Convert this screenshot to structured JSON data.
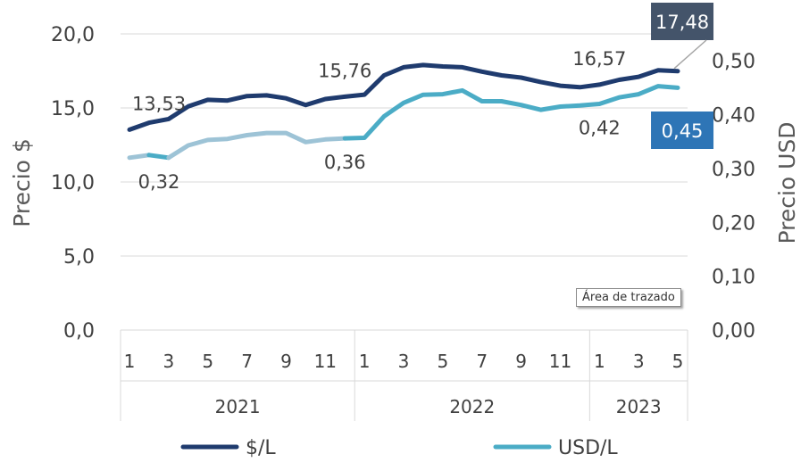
{
  "chart_data": {
    "type": "line",
    "ylabel": "Precio $",
    "y2label": "Precio USD",
    "ylim": [
      0,
      20
    ],
    "y2lim": [
      0,
      0.55
    ],
    "yticks": [
      "0,0",
      "5,0",
      "10,0",
      "15,0",
      "20,0"
    ],
    "y2ticks": [
      "0,00",
      "0,10",
      "0,20",
      "0,30",
      "0,40",
      "0,50"
    ],
    "grid": true,
    "legend": "bottom",
    "months": [
      1,
      2,
      3,
      4,
      5,
      6,
      7,
      8,
      9,
      10,
      11,
      12,
      1,
      2,
      3,
      4,
      5,
      6,
      7,
      8,
      9,
      10,
      11,
      12,
      1,
      2,
      3,
      4,
      5
    ],
    "month_tick_labels": [
      "1",
      "3",
      "5",
      "7",
      "9",
      "11",
      "1",
      "3",
      "5",
      "7",
      "9",
      "11",
      "1",
      "3",
      "5"
    ],
    "years": [
      "2021",
      "2022",
      "2023"
    ],
    "series": [
      {
        "name": "$/L",
        "axis": "left",
        "color": "#1f3b6e",
        "values": [
          13.53,
          14.0,
          14.25,
          15.1,
          15.55,
          15.5,
          15.8,
          15.85,
          15.65,
          15.2,
          15.6,
          15.76,
          15.9,
          17.2,
          17.75,
          17.9,
          17.8,
          17.75,
          17.45,
          17.2,
          17.05,
          16.75,
          16.5,
          16.4,
          16.57,
          16.9,
          17.1,
          17.55,
          17.48
        ]
      },
      {
        "name": "USD/L",
        "axis": "right",
        "color": "#4bacc6",
        "light_color": "#9dc3d6",
        "values": [
          0.32,
          0.325,
          0.32,
          0.343,
          0.353,
          0.355,
          0.362,
          0.366,
          0.366,
          0.349,
          0.354,
          0.356,
          0.357,
          0.397,
          0.422,
          0.437,
          0.438,
          0.445,
          0.425,
          0.425,
          0.418,
          0.409,
          0.415,
          0.417,
          0.42,
          0.432,
          0.438,
          0.453,
          0.45
        ]
      }
    ],
    "data_labels": [
      {
        "series": 0,
        "index": 0,
        "text": "13,53"
      },
      {
        "series": 0,
        "index": 11,
        "text": "15,76"
      },
      {
        "series": 0,
        "index": 24,
        "text": "16,57"
      },
      {
        "series": 0,
        "index": 28,
        "text": "17,48",
        "style": "callout",
        "color": "#44546a"
      },
      {
        "series": 1,
        "index": 0,
        "text": "0,32"
      },
      {
        "series": 1,
        "index": 11,
        "text": "0,36"
      },
      {
        "series": 1,
        "index": 24,
        "text": "0,42"
      },
      {
        "series": 1,
        "index": 28,
        "text": "0,45",
        "style": "callout",
        "color": "#2e75b6"
      }
    ]
  },
  "tooltip": "Área de trazado"
}
